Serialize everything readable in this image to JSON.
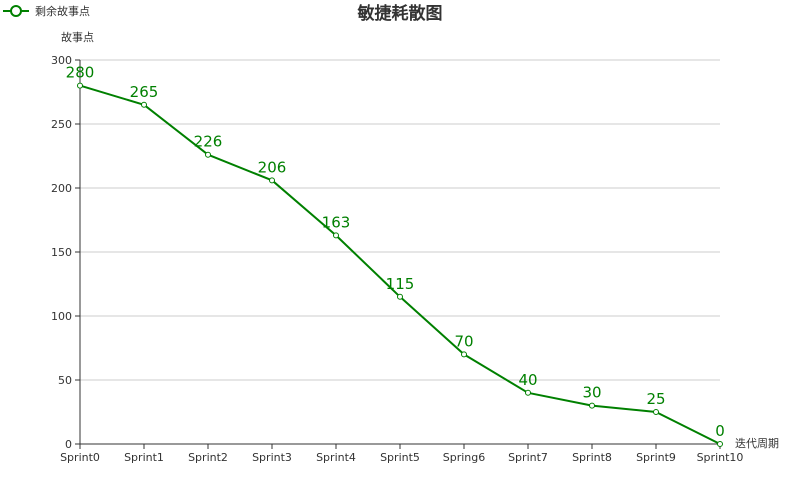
{
  "chart_data": {
    "type": "line",
    "title": "敏捷耗散图",
    "xlabel": "迭代周期",
    "ylabel": "故事点",
    "categories": [
      "Sprint0",
      "Sprint1",
      "Sprint2",
      "Sprint3",
      "Sprint4",
      "Sprint5",
      "Spring6",
      "Sprint7",
      "Sprint8",
      "Sprint9",
      "Sprint10"
    ],
    "series": [
      {
        "name": "剩余故事点",
        "values": [
          280,
          265,
          226,
          206,
          163,
          115,
          70,
          40,
          30,
          25,
          0
        ]
      }
    ],
    "ylim": [
      0,
      300
    ],
    "yticks": [
      0,
      50,
      100,
      150,
      200,
      250,
      300
    ],
    "grid": true,
    "legend": "top-left",
    "color": "#008000"
  }
}
